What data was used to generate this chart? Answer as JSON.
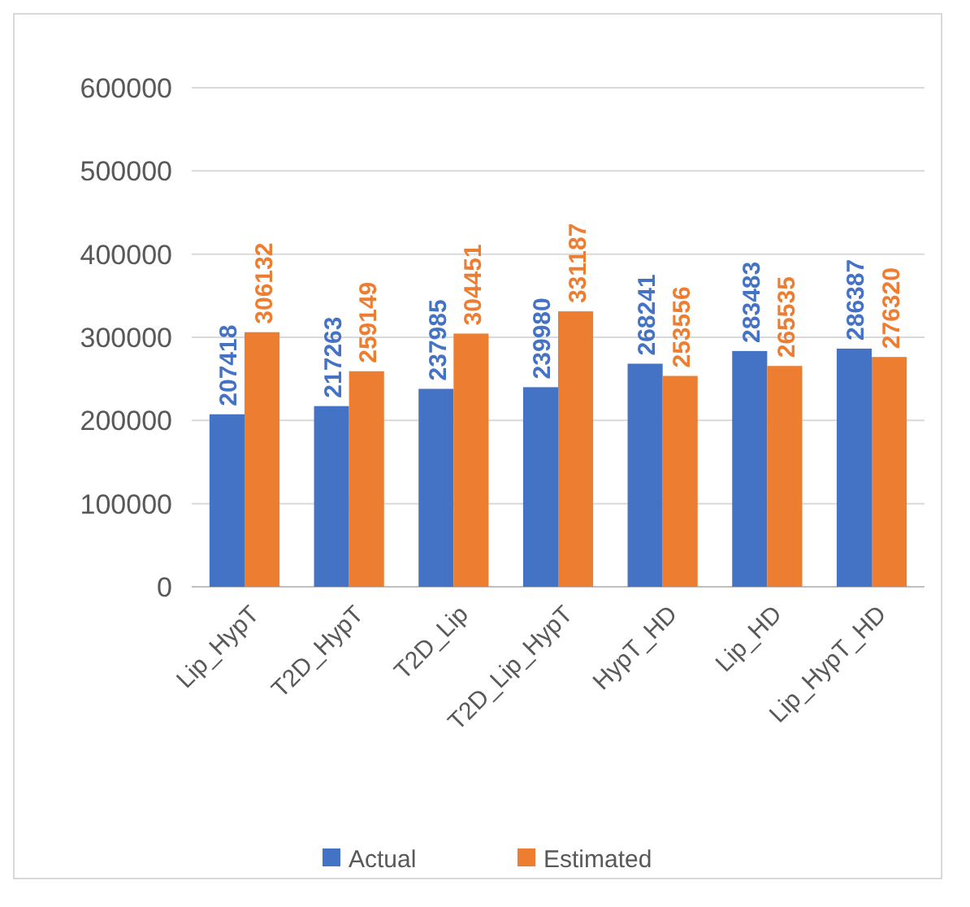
{
  "chart_data": {
    "type": "bar",
    "categories": [
      "Lip_HypT",
      "T2D_HypT",
      "T2D_Lip",
      "T2D_Lip_HypT",
      "HypT_HD",
      "Lip_HD",
      "Lip_HypT_HD"
    ],
    "series": [
      {
        "name": "Actual",
        "color": "#4472c4",
        "values": [
          207418,
          217263,
          237985,
          239980,
          268241,
          283483,
          286387
        ]
      },
      {
        "name": "Estimated",
        "color": "#ed7d31",
        "values": [
          306132,
          259149,
          304451,
          331187,
          253556,
          265535,
          276320
        ]
      }
    ],
    "ylim": [
      0,
      600000
    ],
    "yticks": [
      0,
      100000,
      200000,
      300000,
      400000,
      500000,
      600000
    ],
    "grid": "y",
    "legend": "bottom",
    "data_labels": true
  }
}
